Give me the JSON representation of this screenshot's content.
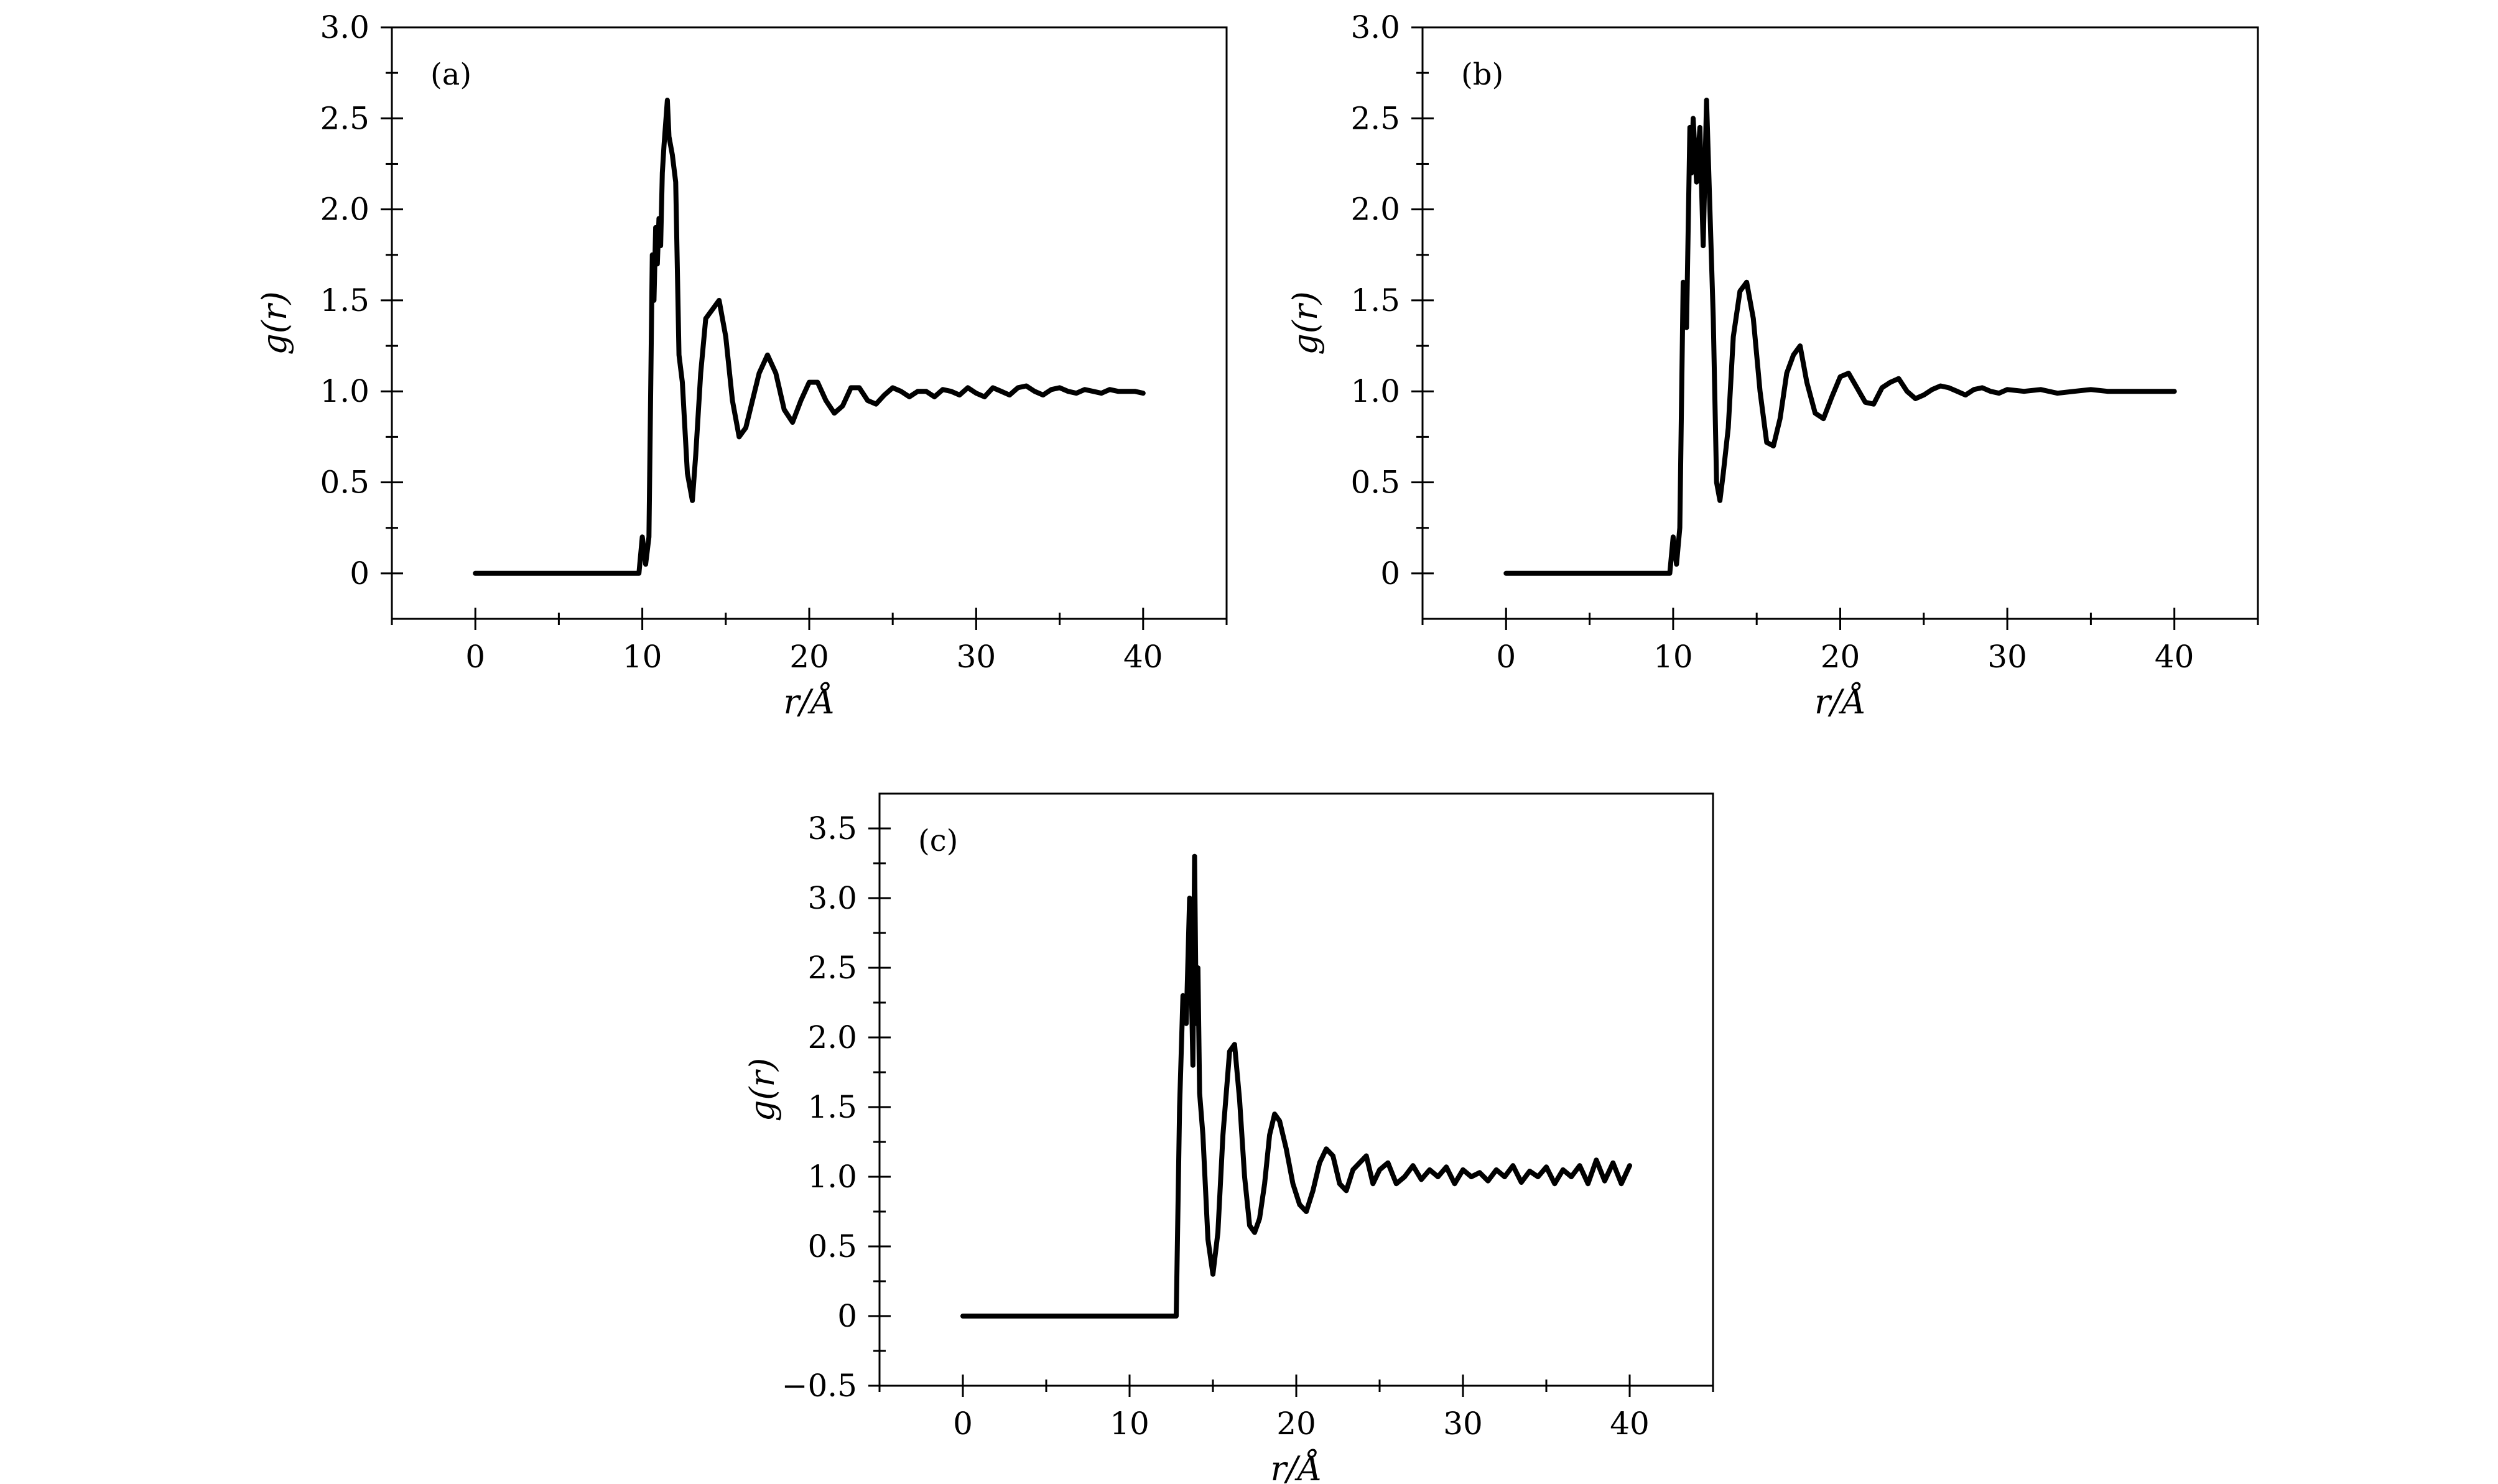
{
  "chart_data": [
    {
      "type": "line",
      "panel_label": "(a)",
      "xlabel": "r/Å",
      "ylabel": "g(r)",
      "xlim": [
        -5,
        45
      ],
      "ylim": [
        -0.25,
        3.0
      ],
      "x_ticks": [
        0,
        10,
        20,
        30,
        40
      ],
      "x_tick_labels": [
        "0",
        "10",
        "20",
        "30",
        "40"
      ],
      "y_ticks": [
        0,
        0.5,
        1.0,
        1.5,
        2.0,
        2.5,
        3.0
      ],
      "y_tick_labels": [
        "0",
        "0.5",
        "1.0",
        "1.5",
        "2.0",
        "2.5",
        "3.0"
      ],
      "series": [
        {
          "x": [
            0,
            9.8,
            10.0,
            10.2,
            10.4,
            10.6,
            10.7,
            10.8,
            10.9,
            11.0,
            11.1,
            11.2,
            11.3,
            11.5,
            11.6,
            11.8,
            12.0,
            12.2,
            12.4,
            12.7,
            13.0,
            13.2,
            13.5,
            13.8,
            14.2,
            14.6,
            15.0,
            15.4,
            15.8,
            16.2,
            16.6,
            17.0,
            17.5,
            18.0,
            18.5,
            19.0,
            19.5,
            20.0,
            20.5,
            21.0,
            21.5,
            22.0,
            22.5,
            23.0,
            23.5,
            24.0,
            24.5,
            25.0,
            25.5,
            26.0,
            26.5,
            27.0,
            27.5,
            28.0,
            28.5,
            29.0,
            29.5,
            30.0,
            30.5,
            31.0,
            31.5,
            32.0,
            32.5,
            33.0,
            33.5,
            34.0,
            34.5,
            35.0,
            35.5,
            36.0,
            36.5,
            37.0,
            37.5,
            38.0,
            38.5,
            39.0,
            39.5,
            40.0
          ],
          "y": [
            0,
            0,
            0.2,
            0.05,
            0.2,
            1.75,
            1.5,
            1.9,
            1.7,
            1.95,
            1.8,
            2.2,
            2.35,
            2.6,
            2.4,
            2.3,
            2.15,
            1.2,
            1.05,
            0.55,
            0.4,
            0.65,
            1.1,
            1.4,
            1.45,
            1.5,
            1.3,
            0.95,
            0.75,
            0.8,
            0.95,
            1.1,
            1.2,
            1.1,
            0.9,
            0.83,
            0.95,
            1.05,
            1.05,
            0.95,
            0.88,
            0.92,
            1.02,
            1.02,
            0.95,
            0.93,
            0.98,
            1.02,
            1.0,
            0.97,
            1.0,
            1.0,
            0.97,
            1.01,
            1.0,
            0.98,
            1.02,
            0.99,
            0.97,
            1.02,
            1.0,
            0.98,
            1.02,
            1.03,
            1.0,
            0.98,
            1.01,
            1.02,
            1.0,
            0.99,
            1.01,
            1.0,
            0.99,
            1.01,
            1.0,
            1.0,
            1.0,
            0.99
          ]
        }
      ]
    },
    {
      "type": "line",
      "panel_label": "(b)",
      "xlabel": "r/Å",
      "ylabel": "g(r)",
      "xlim": [
        -5,
        45
      ],
      "ylim": [
        -0.25,
        3.0
      ],
      "x_ticks": [
        0,
        10,
        20,
        30,
        40
      ],
      "x_tick_labels": [
        "0",
        "10",
        "20",
        "30",
        "40"
      ],
      "y_ticks": [
        0,
        0.5,
        1.0,
        1.5,
        2.0,
        2.5,
        3.0
      ],
      "y_tick_labels": [
        "0",
        "0.5",
        "1.0",
        "1.5",
        "2.0",
        "2.5",
        "3.0"
      ],
      "series": [
        {
          "x": [
            0,
            9.8,
            10.0,
            10.2,
            10.4,
            10.6,
            10.8,
            11.0,
            11.1,
            11.2,
            11.4,
            11.6,
            11.8,
            12.0,
            12.2,
            12.4,
            12.6,
            12.8,
            13.0,
            13.3,
            13.6,
            14.0,
            14.4,
            14.8,
            15.2,
            15.6,
            16.0,
            16.4,
            16.8,
            17.2,
            17.6,
            18.0,
            18.5,
            19.0,
            19.5,
            20.0,
            20.5,
            21.0,
            21.5,
            22.0,
            22.5,
            23.0,
            23.5,
            24.0,
            24.5,
            25.0,
            25.5,
            26.0,
            26.5,
            27.0,
            27.5,
            28.0,
            28.5,
            29.0,
            29.5,
            30.0,
            31.0,
            32.0,
            33.0,
            34.0,
            35.0,
            36.0,
            37.0,
            38.0,
            39.0,
            40.0
          ],
          "y": [
            0,
            0,
            0.2,
            0.05,
            0.25,
            1.6,
            1.35,
            2.45,
            2.2,
            2.5,
            2.15,
            2.45,
            1.8,
            2.6,
            2.0,
            1.4,
            0.5,
            0.4,
            0.55,
            0.8,
            1.3,
            1.55,
            1.6,
            1.4,
            1.0,
            0.72,
            0.7,
            0.85,
            1.1,
            1.2,
            1.25,
            1.05,
            0.88,
            0.85,
            0.97,
            1.08,
            1.1,
            1.02,
            0.94,
            0.93,
            1.02,
            1.05,
            1.07,
            1.0,
            0.96,
            0.98,
            1.01,
            1.03,
            1.02,
            1.0,
            0.98,
            1.01,
            1.02,
            1.0,
            0.99,
            1.01,
            1.0,
            1.01,
            0.99,
            1.0,
            1.01,
            1.0,
            1.0,
            1.0,
            1.0,
            1.0
          ]
        }
      ]
    },
    {
      "type": "line",
      "panel_label": "(c)",
      "xlabel": "r/Å",
      "ylabel": "g(r)",
      "xlim": [
        -5,
        45
      ],
      "ylim": [
        -0.5,
        3.75
      ],
      "x_ticks": [
        0,
        10,
        20,
        30,
        40
      ],
      "x_tick_labels": [
        "0",
        "10",
        "20",
        "30",
        "40"
      ],
      "y_ticks": [
        -0.5,
        0,
        0.5,
        1.0,
        1.5,
        2.0,
        2.5,
        3.0,
        3.5
      ],
      "y_tick_labels": [
        "−0.5",
        "0",
        "0.5",
        "1.0",
        "1.5",
        "2.0",
        "2.5",
        "3.0",
        "3.5"
      ],
      "series": [
        {
          "x": [
            0,
            12.8,
            13.0,
            13.2,
            13.4,
            13.6,
            13.7,
            13.8,
            13.9,
            14.0,
            14.1,
            14.2,
            14.4,
            14.7,
            15.0,
            15.3,
            15.6,
            16.0,
            16.3,
            16.6,
            16.9,
            17.2,
            17.5,
            17.8,
            18.1,
            18.4,
            18.7,
            19.0,
            19.4,
            19.8,
            20.2,
            20.6,
            21.0,
            21.4,
            21.8,
            22.2,
            22.6,
            23.0,
            23.4,
            23.8,
            24.2,
            24.6,
            25.0,
            25.5,
            26.0,
            26.5,
            27.0,
            27.5,
            28.0,
            28.5,
            29.0,
            29.5,
            30.0,
            30.5,
            31.0,
            31.5,
            32.0,
            32.5,
            33.0,
            33.5,
            34.0,
            34.5,
            35.0,
            35.5,
            36.0,
            36.5,
            37.0,
            37.5,
            38.0,
            38.5,
            39.0,
            39.5,
            40.0
          ],
          "y": [
            0,
            0,
            1.5,
            2.3,
            2.1,
            3.0,
            2.4,
            1.8,
            3.3,
            2.1,
            2.5,
            1.6,
            1.3,
            0.55,
            0.3,
            0.6,
            1.3,
            1.9,
            1.95,
            1.55,
            1.0,
            0.65,
            0.6,
            0.7,
            0.95,
            1.3,
            1.45,
            1.4,
            1.2,
            0.95,
            0.8,
            0.75,
            0.9,
            1.1,
            1.2,
            1.15,
            0.95,
            0.9,
            1.05,
            1.1,
            1.15,
            0.95,
            1.05,
            1.1,
            0.95,
            1.0,
            1.08,
            0.98,
            1.05,
            1.0,
            1.07,
            0.95,
            1.05,
            1.0,
            1.03,
            0.97,
            1.05,
            1.0,
            1.08,
            0.96,
            1.04,
            1.0,
            1.07,
            0.95,
            1.05,
            1.0,
            1.08,
            0.95,
            1.12,
            0.97,
            1.1,
            0.95,
            1.08
          ]
        }
      ]
    }
  ]
}
